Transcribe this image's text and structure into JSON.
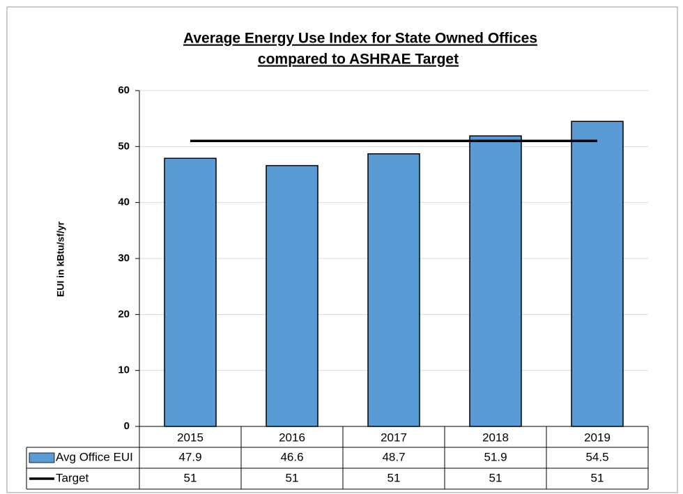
{
  "chart_data": {
    "type": "bar",
    "title": [
      "Average Energy Use Index for State Owned Offices",
      "compared to ASHRAE Target"
    ],
    "y_label": "EUI in kBtu/sf/yr",
    "categories": [
      "2015",
      "2016",
      "2017",
      "2018",
      "2019"
    ],
    "series": [
      {
        "name": "Avg Office EUI",
        "type": "bar",
        "color": "#5b9bd5",
        "values": [
          47.9,
          46.6,
          48.7,
          51.9,
          54.5
        ]
      },
      {
        "name": "Target",
        "type": "line",
        "color": "#000000",
        "values": [
          51,
          51,
          51,
          51,
          51
        ]
      }
    ],
    "ylim": [
      0,
      60
    ],
    "yticks": [
      0,
      10,
      20,
      30,
      40,
      50,
      60
    ],
    "grid": true
  }
}
